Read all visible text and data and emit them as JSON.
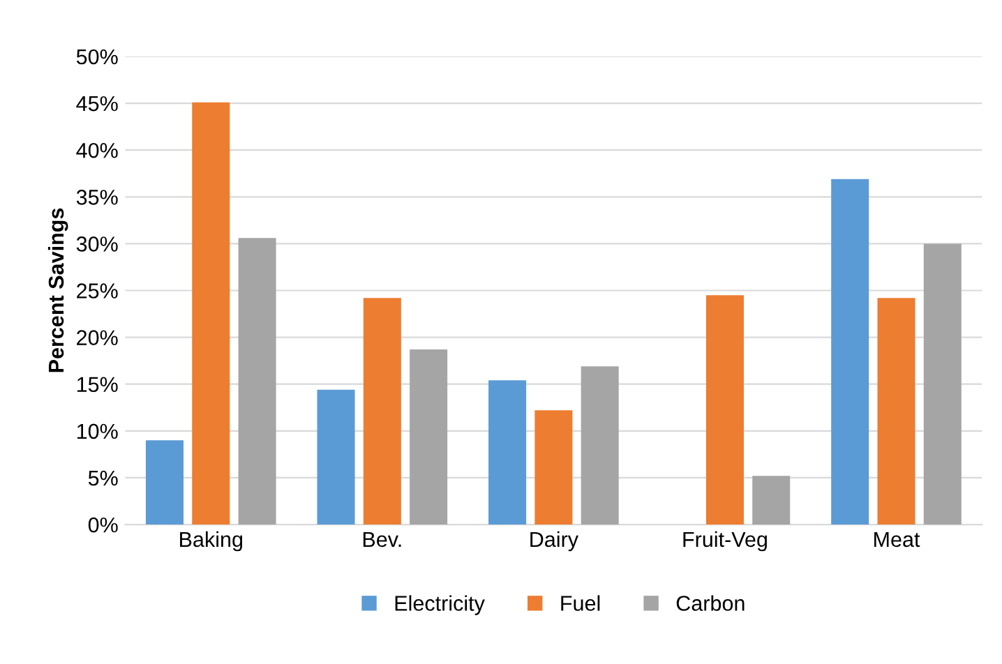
{
  "chart_data": {
    "type": "bar",
    "ylabel": "Percent Savings",
    "categories": [
      "Baking",
      "Bev.",
      "Dairy",
      "Fruit-Veg",
      "Meat"
    ],
    "series": [
      {
        "name": "Electricity",
        "color": "#5b9bd5",
        "values": [
          9.0,
          14.4,
          15.4,
          null,
          36.9
        ]
      },
      {
        "name": "Fuel",
        "color": "#ed7d31",
        "values": [
          45.1,
          24.2,
          12.2,
          24.5,
          24.2
        ]
      },
      {
        "name": "Carbon",
        "color": "#a5a5a5",
        "values": [
          30.6,
          18.7,
          16.9,
          5.2,
          30.0
        ]
      }
    ],
    "ylim": [
      0,
      50
    ],
    "yticks": [
      {
        "value": 0,
        "label": "0%"
      },
      {
        "value": 5,
        "label": "5%"
      },
      {
        "value": 10,
        "label": "10%"
      },
      {
        "value": 15,
        "label": "15%"
      },
      {
        "value": 20,
        "label": "20%"
      },
      {
        "value": 25,
        "label": "25%"
      },
      {
        "value": 30,
        "label": "30%"
      },
      {
        "value": 35,
        "label": "35%"
      },
      {
        "value": 40,
        "label": "40%"
      },
      {
        "value": 45,
        "label": "45%"
      },
      {
        "value": 50,
        "label": "50%"
      }
    ],
    "grid": "y",
    "legend": "bottom"
  }
}
